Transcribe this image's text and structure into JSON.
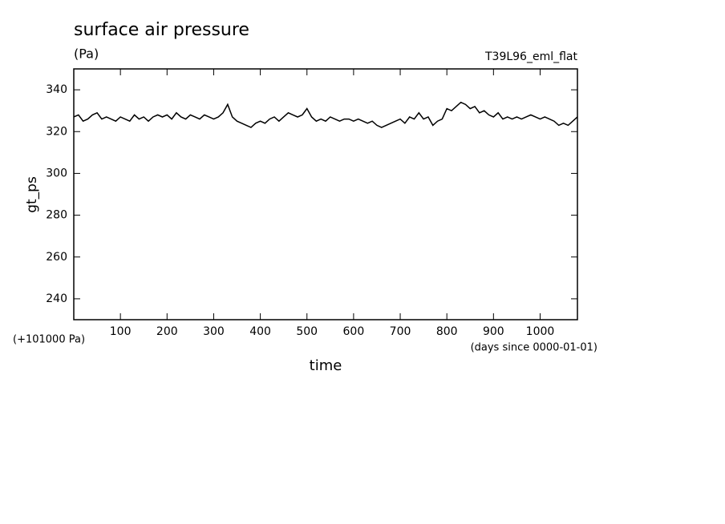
{
  "chart_data": {
    "type": "line",
    "title": "surface air pressure",
    "subtitle": "(Pa)",
    "annotation": "T39L96_eml_flat",
    "ylabel": "gt_ps",
    "y_offset_label": "(+101000 Pa)",
    "xlabel": "time",
    "x_units_label": "(days since 0000-01-01)",
    "xlim": [
      0,
      1080
    ],
    "ylim": [
      230,
      350
    ],
    "xticks": [
      100,
      200,
      300,
      400,
      500,
      600,
      700,
      800,
      900,
      1000
    ],
    "yticks": [
      240,
      260,
      280,
      300,
      320,
      340
    ],
    "color": "#000000",
    "x": [
      0,
      10,
      20,
      30,
      40,
      50,
      60,
      70,
      80,
      90,
      100,
      110,
      120,
      130,
      140,
      150,
      160,
      170,
      180,
      190,
      200,
      210,
      220,
      230,
      240,
      250,
      260,
      270,
      280,
      290,
      300,
      310,
      320,
      330,
      340,
      350,
      360,
      370,
      380,
      390,
      400,
      410,
      420,
      430,
      440,
      450,
      460,
      470,
      480,
      490,
      500,
      510,
      520,
      530,
      540,
      550,
      560,
      570,
      580,
      590,
      600,
      610,
      620,
      630,
      640,
      650,
      660,
      670,
      680,
      690,
      700,
      710,
      720,
      730,
      740,
      750,
      760,
      770,
      780,
      790,
      800,
      810,
      820,
      830,
      840,
      850,
      860,
      870,
      880,
      890,
      900,
      910,
      920,
      930,
      940,
      950,
      960,
      970,
      980,
      990,
      1000,
      1010,
      1020,
      1030,
      1040,
      1050,
      1060,
      1070,
      1080
    ],
    "values": [
      327,
      328,
      325,
      326,
      328,
      329,
      326,
      327,
      326,
      325,
      327,
      326,
      325,
      328,
      326,
      327,
      325,
      327,
      328,
      327,
      328,
      326,
      329,
      327,
      326,
      328,
      327,
      326,
      328,
      327,
      326,
      327,
      329,
      333,
      327,
      325,
      324,
      323,
      322,
      324,
      325,
      324,
      326,
      327,
      325,
      327,
      329,
      328,
      327,
      328,
      331,
      327,
      325,
      326,
      325,
      327,
      326,
      325,
      326,
      326,
      325,
      326,
      325,
      324,
      325,
      323,
      322,
      323,
      324,
      325,
      326,
      324,
      327,
      326,
      329,
      326,
      327,
      323,
      325,
      326,
      331,
      330,
      332,
      334,
      333,
      331,
      332,
      329,
      330,
      328,
      327,
      329,
      326,
      327,
      326,
      327,
      326,
      327,
      328,
      327,
      326,
      327,
      326,
      325,
      323,
      324,
      323,
      325,
      327
    ]
  }
}
